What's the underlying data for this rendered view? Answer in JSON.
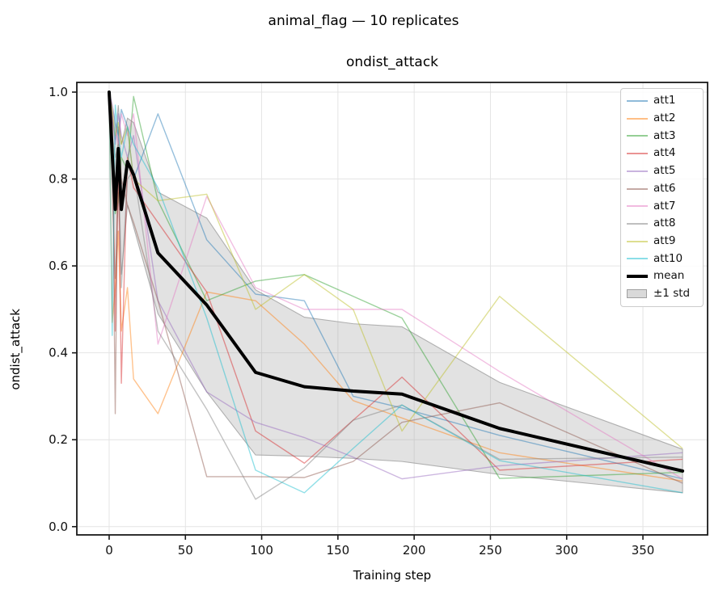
{
  "chart_data": {
    "type": "line",
    "suptitle": "animal_flag  —  10 replicates",
    "title": "ondist_attack",
    "xlabel": "Training step",
    "ylabel": "ondist_attack",
    "grid": true,
    "legend_position": "upper right",
    "xlim": [
      -21.2,
      392.4
    ],
    "ylim": [
      -0.019,
      1.0223
    ],
    "xticks": [
      "0",
      "50",
      "100",
      "150",
      "200",
      "250",
      "300",
      "350"
    ],
    "yticks": [
      "0.0",
      "0.2",
      "0.4",
      "0.6",
      "0.8",
      "1.0"
    ],
    "x": [
      0,
      2,
      4,
      6,
      8,
      12,
      16,
      32,
      64,
      96,
      128,
      160,
      192,
      256,
      376
    ],
    "series": [
      {
        "name": "att1",
        "color": "#1f77b4",
        "values": [
          1.0,
          0.97,
          0.93,
          0.9,
          0.96,
          0.92,
          0.8,
          0.95,
          0.66,
          0.535,
          0.52,
          0.3,
          0.273,
          0.21,
          0.11
        ]
      },
      {
        "name": "att2",
        "color": "#ff7f0e",
        "values": [
          1.0,
          0.47,
          0.55,
          0.68,
          0.45,
          0.55,
          0.34,
          0.26,
          0.54,
          0.52,
          0.42,
          0.29,
          0.25,
          0.17,
          0.105
        ]
      },
      {
        "name": "att3",
        "color": "#2ca02c",
        "values": [
          1.0,
          0.88,
          0.72,
          0.75,
          0.85,
          0.82,
          0.99,
          0.75,
          0.52,
          0.565,
          0.58,
          0.53,
          0.48,
          0.111,
          0.125
        ]
      },
      {
        "name": "att4",
        "color": "#d62728",
        "values": [
          1.0,
          0.93,
          0.45,
          0.85,
          0.33,
          0.85,
          0.78,
          0.7,
          0.54,
          0.22,
          0.146,
          0.245,
          0.344,
          0.13,
          0.155
        ]
      },
      {
        "name": "att5",
        "color": "#9467bd",
        "values": [
          1.0,
          0.95,
          0.88,
          0.95,
          0.9,
          0.85,
          0.9,
          0.52,
          0.31,
          0.24,
          0.205,
          0.16,
          0.11,
          0.14,
          0.17
        ]
      },
      {
        "name": "att6",
        "color": "#8c564b",
        "values": [
          1.0,
          0.93,
          0.26,
          0.92,
          0.8,
          0.74,
          0.7,
          0.52,
          0.115,
          0.115,
          0.113,
          0.15,
          0.24,
          0.285,
          0.1
        ]
      },
      {
        "name": "att7",
        "color": "#e377c2",
        "values": [
          1.0,
          0.97,
          0.92,
          0.88,
          0.95,
          0.9,
          0.95,
          0.42,
          0.76,
          0.55,
          0.5,
          0.5,
          0.5,
          0.357,
          0.11
        ]
      },
      {
        "name": "att8",
        "color": "#7f7f7f",
        "values": [
          1.0,
          0.9,
          0.85,
          0.88,
          0.55,
          0.8,
          0.82,
          0.45,
          0.27,
          0.063,
          0.135,
          0.245,
          0.28,
          0.155,
          0.16
        ]
      },
      {
        "name": "att9",
        "color": "#bcbd22",
        "values": [
          1.0,
          0.96,
          0.9,
          0.93,
          0.88,
          0.92,
          0.8,
          0.75,
          0.765,
          0.5,
          0.58,
          0.5,
          0.22,
          0.53,
          0.18
        ]
      },
      {
        "name": "att10",
        "color": "#17becf",
        "values": [
          1.0,
          0.44,
          0.97,
          0.9,
          0.85,
          0.92,
          0.88,
          0.78,
          0.48,
          0.13,
          0.078,
          0.18,
          0.28,
          0.152,
          0.078
        ]
      }
    ],
    "mean": {
      "name": "mean",
      "color": "#000000",
      "values": [
        1.0,
        0.86,
        0.73,
        0.87,
        0.73,
        0.84,
        0.81,
        0.63,
        0.51,
        0.355,
        0.322,
        0.312,
        0.305,
        0.226,
        0.128
      ]
    },
    "std_band": {
      "name": "±1 std",
      "fill_color": "#9e9e9e",
      "edge_color": "#9a9a9a",
      "values": [
        0.0,
        0.09,
        0.16,
        0.1,
        0.15,
        0.1,
        0.12,
        0.14,
        0.2,
        0.19,
        0.16,
        0.155,
        0.155,
        0.106,
        0.05
      ]
    }
  }
}
